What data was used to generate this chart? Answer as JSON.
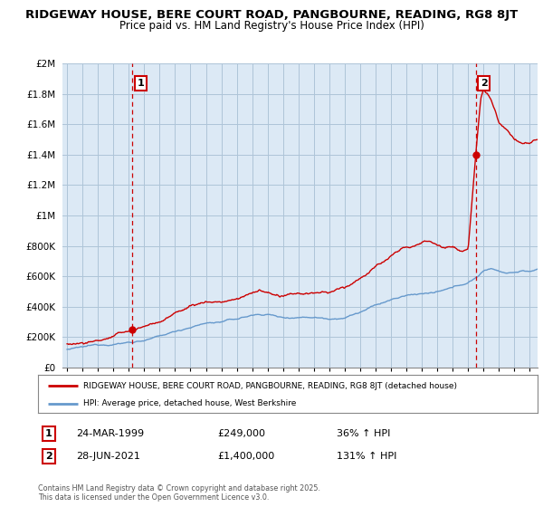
{
  "title": "RIDGEWAY HOUSE, BERE COURT ROAD, PANGBOURNE, READING, RG8 8JT",
  "subtitle": "Price paid vs. HM Land Registry's House Price Index (HPI)",
  "title_fontsize": 9.5,
  "subtitle_fontsize": 8.5,
  "background_color": "#ffffff",
  "plot_bg_color": "#dce9f5",
  "grid_color": "#aec4d8",
  "sale1_date_x": 1999.23,
  "sale1_price": 249000,
  "sale1_label": "1",
  "sale2_date_x": 2021.49,
  "sale2_price": 1400000,
  "sale2_label": "2",
  "house_line_color": "#cc0000",
  "hpi_line_color": "#6699cc",
  "dashed_color": "#cc0000",
  "ylim": [
    0,
    2000000
  ],
  "xlim": [
    1994.7,
    2025.5
  ],
  "yticks": [
    0,
    200000,
    400000,
    600000,
    800000,
    1000000,
    1200000,
    1400000,
    1600000,
    1800000,
    2000000
  ],
  "ytick_labels": [
    "£0",
    "£200K",
    "£400K",
    "£600K",
    "£800K",
    "£1M",
    "£1.2M",
    "£1.4M",
    "£1.6M",
    "£1.8M",
    "£2M"
  ],
  "xtick_years": [
    1995,
    1996,
    1997,
    1998,
    1999,
    2000,
    2001,
    2002,
    2003,
    2004,
    2005,
    2006,
    2007,
    2008,
    2009,
    2010,
    2011,
    2012,
    2013,
    2014,
    2015,
    2016,
    2017,
    2018,
    2019,
    2020,
    2021,
    2022,
    2023,
    2024,
    2025
  ],
  "legend_house": "RIDGEWAY HOUSE, BERE COURT ROAD, PANGBOURNE, READING, RG8 8JT (detached house)",
  "legend_hpi": "HPI: Average price, detached house, West Berkshire",
  "annotation1_date": "24-MAR-1999",
  "annotation1_price": "£249,000",
  "annotation1_hpi": "36% ↑ HPI",
  "annotation2_date": "28-JUN-2021",
  "annotation2_price": "£1,400,000",
  "annotation2_hpi": "131% ↑ HPI",
  "footer": "Contains HM Land Registry data © Crown copyright and database right 2025.\nThis data is licensed under the Open Government Licence v3.0."
}
